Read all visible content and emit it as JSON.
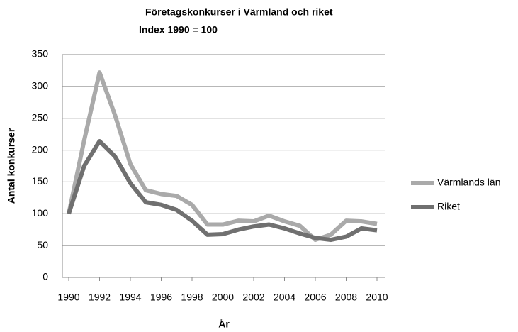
{
  "chart_data": {
    "type": "line",
    "title": "Företagskonkurser i Värmland och riket",
    "subtitle": "Index 1990 = 100",
    "x_label": "År",
    "y_label": "Antal konkurser",
    "x": [
      1990,
      1991,
      1992,
      1993,
      1994,
      1995,
      1996,
      1997,
      1998,
      1999,
      2000,
      2001,
      2002,
      2003,
      2004,
      2005,
      2006,
      2007,
      2008,
      2009,
      2010
    ],
    "series": [
      {
        "name": "Värmlands län",
        "color": "#aaaaaa",
        "values": [
          100,
          215,
          322,
          255,
          178,
          137,
          131,
          128,
          114,
          83,
          83,
          89,
          88,
          97,
          88,
          81,
          59,
          67,
          89,
          88,
          84
        ]
      },
      {
        "name": "Riket",
        "color": "#707070",
        "values": [
          100,
          175,
          214,
          190,
          148,
          118,
          114,
          106,
          89,
          67,
          68,
          75,
          80,
          83,
          77,
          69,
          62,
          59,
          64,
          77,
          74
        ]
      }
    ],
    "xlim": [
      1990,
      2010
    ],
    "xticks": [
      1990,
      1992,
      1994,
      1996,
      1998,
      2000,
      2002,
      2004,
      2006,
      2008,
      2010
    ],
    "ylim": [
      0,
      350
    ],
    "yticks": [
      0,
      50,
      100,
      150,
      200,
      250,
      300,
      350
    ],
    "grid": true,
    "legend": "right"
  }
}
